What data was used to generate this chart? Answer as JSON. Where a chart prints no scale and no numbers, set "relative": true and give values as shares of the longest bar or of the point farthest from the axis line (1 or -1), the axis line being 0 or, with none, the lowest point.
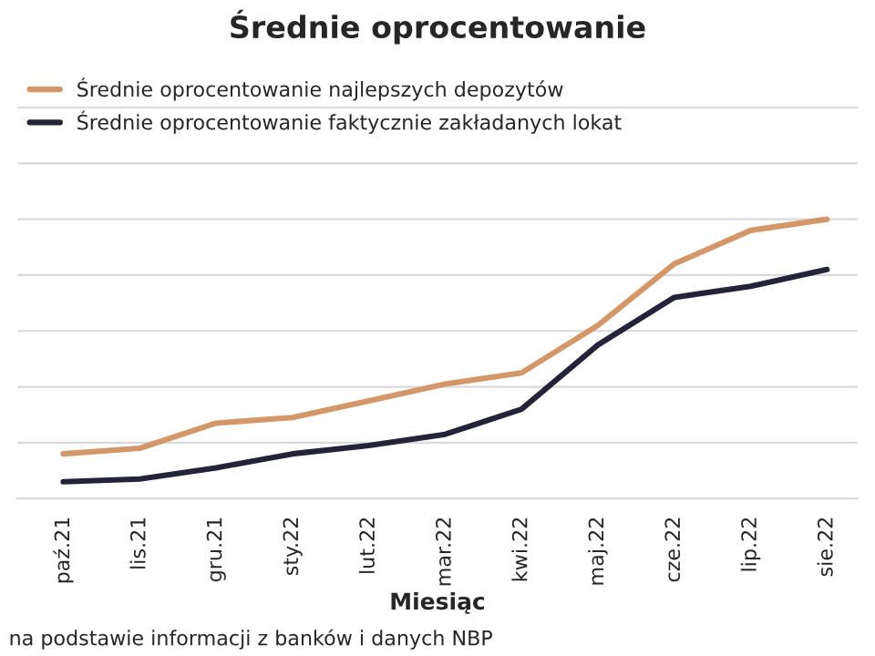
{
  "chart_data": {
    "type": "line",
    "title": "Średnie oprocentowanie",
    "xlabel": "Miesiąc",
    "relative": true,
    "categories": [
      "paź.21",
      "lis.21",
      "gru.21",
      "sty.22",
      "lut.22",
      "mar.22",
      "kwi.22",
      "maj.22",
      "cze.22",
      "lip.22",
      "sie.22"
    ],
    "series": [
      {
        "name": "Średnie oprocentowanie najlepszych depozytów",
        "color": "#d4976a",
        "values": [
          0.16,
          0.18,
          0.27,
          0.29,
          0.35,
          0.41,
          0.45,
          0.62,
          0.84,
          0.96,
          1.0
        ]
      },
      {
        "name": "Średnie oprocentowanie faktycznie zakładanych lokat",
        "color": "#23233a",
        "values": [
          0.06,
          0.07,
          0.11,
          0.16,
          0.19,
          0.23,
          0.32,
          0.55,
          0.72,
          0.76,
          0.82
        ]
      }
    ],
    "grid": "y",
    "legend": "top left",
    "tick_labels": "x",
    "marker": "none",
    "line_style": "solid",
    "annotations": [
      "na podstawie informacji z banków i danych NBP"
    ]
  }
}
